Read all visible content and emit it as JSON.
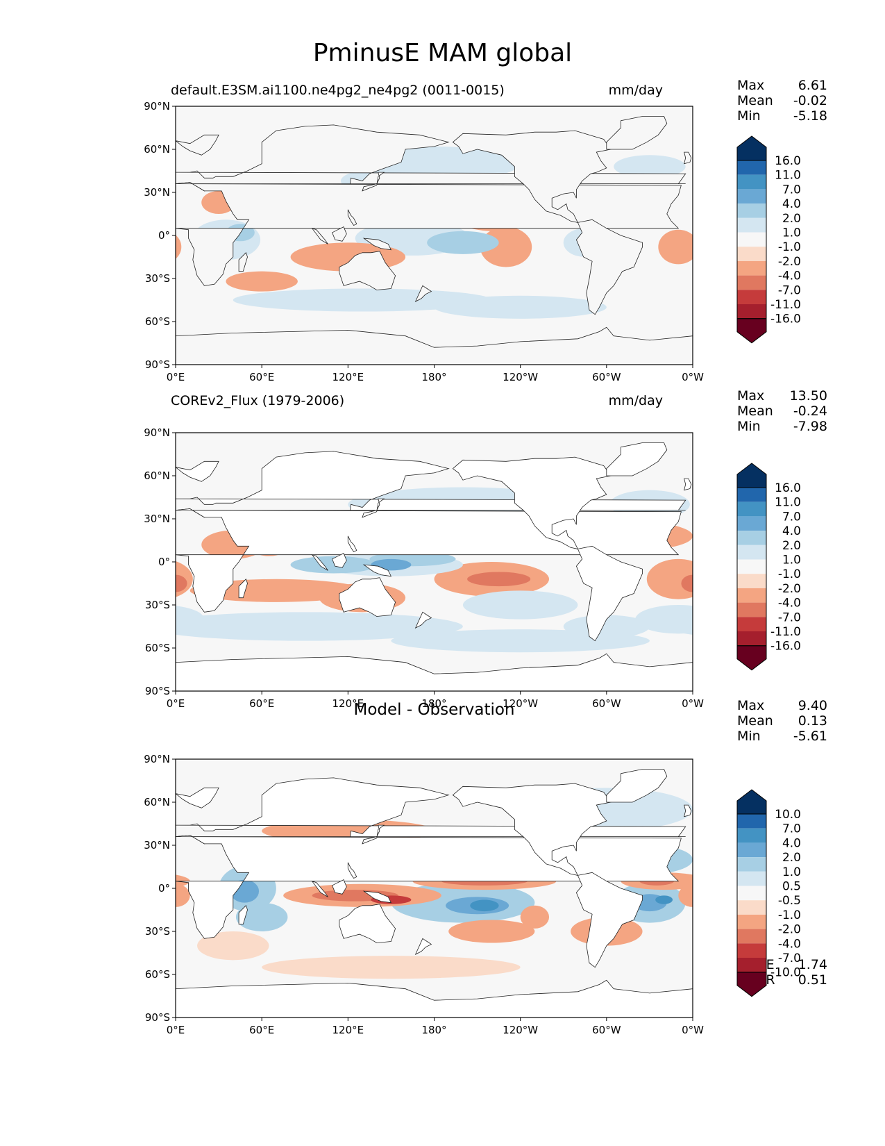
{
  "figure": {
    "title": "PminusE MAM global"
  },
  "axes": {
    "lat_ticks": [
      "90°N",
      "60°N",
      "30°N",
      "0°",
      "30°S",
      "60°S",
      "90°S"
    ],
    "lon_ticks": [
      "0°E",
      "60°E",
      "120°E",
      "180°",
      "120°W",
      "60°W",
      "0°W"
    ]
  },
  "panels": [
    {
      "label": "default.E3SM.ai1100.ne4pg2_ne4pg2 (0011-0015)",
      "units": "mm/day",
      "stats": [
        {
          "k": "Max",
          "v": "6.61"
        },
        {
          "k": "Mean",
          "v": "-0.02"
        },
        {
          "k": "Min",
          "v": "-5.18"
        }
      ]
    },
    {
      "label": "COREv2_Flux (1979-2006)",
      "units": "mm/day",
      "stats": [
        {
          "k": "Max",
          "v": "13.50"
        },
        {
          "k": "Mean",
          "v": "-0.24"
        },
        {
          "k": "Min",
          "v": "-7.98"
        }
      ]
    },
    {
      "label": "Model - Observation",
      "units": "",
      "stats": [
        {
          "k": "Max",
          "v": "9.40"
        },
        {
          "k": "Mean",
          "v": "0.13"
        },
        {
          "k": "Min",
          "v": "-5.61"
        }
      ],
      "extra_stats": [
        {
          "k": "RMSE",
          "v": "1.74"
        },
        {
          "k": "CORR",
          "v": "0.51"
        }
      ]
    }
  ],
  "colorbars": {
    "levels_field": [
      "16.0",
      "11.0",
      "7.0",
      "4.0",
      "2.0",
      "1.0",
      "-1.0",
      "-2.0",
      "-4.0",
      "-7.0",
      "-11.0",
      "-16.0"
    ],
    "levels_diff": [
      "10.0",
      "7.0",
      "4.0",
      "2.0",
      "1.0",
      "0.5",
      "-0.5",
      "-1.0",
      "-2.0",
      "-4.0",
      "-7.0",
      "-10.0"
    ],
    "colors": [
      "#053061",
      "#2166ac",
      "#4393c3",
      "#6aa8d4",
      "#a7cfe4",
      "#d4e6f1",
      "#f7f7f7",
      "#fadbc9",
      "#f4a582",
      "#e07860",
      "#c53b3b",
      "#a51f2d",
      "#67001f"
    ]
  },
  "chart_data": [
    {
      "type": "heatmap",
      "title": "default.E3SM.ai1100.ne4pg2_ne4pg2 (0011-0015)",
      "units": "mm/day",
      "x_range_deg": [
        0,
        360
      ],
      "y_range_deg": [
        -90,
        90
      ],
      "contour_levels": [
        -16,
        -11,
        -7,
        -4,
        -2,
        -1,
        1,
        2,
        4,
        7,
        11,
        16
      ],
      "max": 6.61,
      "mean": -0.02,
      "min": -5.18
    },
    {
      "type": "heatmap",
      "title": "COREv2_Flux (1979-2006)",
      "units": "mm/day",
      "x_range_deg": [
        0,
        360
      ],
      "y_range_deg": [
        -90,
        90
      ],
      "contour_levels": [
        -16,
        -11,
        -7,
        -4,
        -2,
        -1,
        1,
        2,
        4,
        7,
        11,
        16
      ],
      "max": 13.5,
      "mean": -0.24,
      "min": -7.98
    },
    {
      "type": "heatmap",
      "title": "Model - Observation",
      "x_range_deg": [
        0,
        360
      ],
      "y_range_deg": [
        -90,
        90
      ],
      "contour_levels": [
        -10,
        -7,
        -4,
        -2,
        -1,
        -0.5,
        0.5,
        1,
        2,
        4,
        7,
        10
      ],
      "max": 9.4,
      "mean": 0.13,
      "min": -5.61,
      "rmse": 1.74,
      "corr": 0.51
    }
  ]
}
